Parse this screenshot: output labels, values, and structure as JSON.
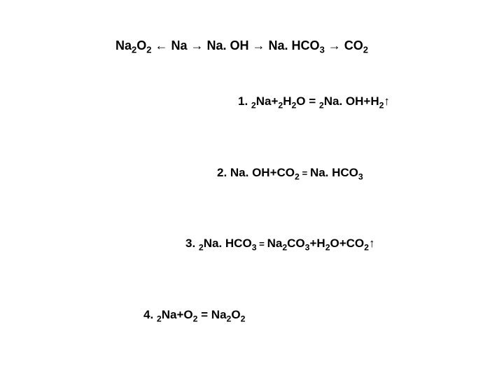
{
  "chain": {
    "part1": "Na",
    "sub1": "2",
    "part2": "O",
    "sub2": "2",
    "arrow_left": " ← ",
    "part3": "Na",
    "arrow_right1": " → ",
    "part4": "Na. OH",
    "arrow_right2": " → ",
    "part5": "Na. HCO",
    "sub3": "3",
    "arrow_right3": " → ",
    "part6": "CO",
    "sub4": "2"
  },
  "eq1": {
    "prefix": "1. ",
    "coef1": "2",
    "t1": "Na+",
    "coef2": "2",
    "t2": "H",
    "sub1": "2",
    "t3": "O = ",
    "coef3": "2",
    "t4": "Na. OH+H",
    "sub2": "2",
    "arrow": "↑"
  },
  "eq2": {
    "prefix": "2. ",
    "t1": "Na. OH+CO",
    "sub1": "2",
    "eq": " = ",
    "t2": "Na. HCO",
    "sub2": "3"
  },
  "eq3": {
    "prefix": "3. ",
    "coef1": "2",
    "t1": "Na. HCO",
    "sub1": "3",
    "eq": " = ",
    "t2": "Na",
    "sub2": "2",
    "t3": "CO",
    "sub3": "3",
    "t4": "+H",
    "sub4": "2",
    "t5": "O+CO",
    "sub5": "2",
    "arrow": "↑"
  },
  "eq4": {
    "prefix": "4. ",
    "coef1": " 2",
    "t1": "Na+O",
    "sub1": "2",
    "t2": " = Na",
    "sub2": "2",
    "t3": "O",
    "sub3": "2"
  },
  "colors": {
    "background": "#ffffff",
    "text": "#000000"
  },
  "typography": {
    "font_family": "Arial",
    "base_fontsize": 18,
    "font_weight": "bold",
    "sub_scale": 0.72
  }
}
